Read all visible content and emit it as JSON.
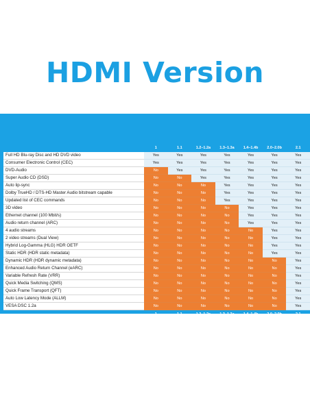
{
  "title": "HDMI Version",
  "colors": {
    "title": "#1ba0e2",
    "band": "#1ba2e4",
    "yes_cell": "#e3f0f8",
    "no_cell": "#ed7f32"
  },
  "versions": [
    "1",
    "1.1",
    "1.2–1.2a",
    "1.3–1.3a",
    "1.4–1.4b",
    "2.0–2.0b",
    "2.1"
  ],
  "rows": [
    {
      "feature": "Full HD Blu-ray Disc and HD DVD video",
      "values": [
        "Yes",
        "Yes",
        "Yes",
        "Yes",
        "Yes",
        "Yes",
        "Yes"
      ]
    },
    {
      "feature": "Consumer Electronic Control (CEC)",
      "values": [
        "Yes",
        "Yes",
        "Yes",
        "Yes",
        "Yes",
        "Yes",
        "Yes"
      ]
    },
    {
      "feature": "DVD-Audio",
      "values": [
        "No",
        "Yes",
        "Yes",
        "Yes",
        "Yes",
        "Yes",
        "Yes"
      ]
    },
    {
      "feature": "Super Audio CD (DSD)",
      "values": [
        "No",
        "No",
        "Yes",
        "Yes",
        "Yes",
        "Yes",
        "Yes"
      ]
    },
    {
      "feature": "Auto lip-sync",
      "values": [
        "No",
        "No",
        "No",
        "Yes",
        "Yes",
        "Yes",
        "Yes"
      ]
    },
    {
      "feature": "Dolby TrueHD / DTS-HD Master Audio bitstream capable",
      "values": [
        "No",
        "No",
        "No",
        "Yes",
        "Yes",
        "Yes",
        "Yes"
      ]
    },
    {
      "feature": "Updated list of CEC commands",
      "values": [
        "No",
        "No",
        "No",
        "Yes",
        "Yes",
        "Yes",
        "Yes"
      ]
    },
    {
      "feature": "3D video",
      "values": [
        "No",
        "No",
        "No",
        "No",
        "Yes",
        "Yes",
        "Yes"
      ]
    },
    {
      "feature": "Ethernet channel (100 Mbit/s)",
      "values": [
        "No",
        "No",
        "No",
        "No",
        "Yes",
        "Yes",
        "Yes"
      ]
    },
    {
      "feature": "Audio return channel (ARC)",
      "values": [
        "No",
        "No",
        "No",
        "No",
        "Yes",
        "Yes",
        "Yes"
      ]
    },
    {
      "feature": "4 audio streams",
      "values": [
        "No",
        "No",
        "No",
        "No",
        "No",
        "Yes",
        "Yes"
      ]
    },
    {
      "feature": "2 video streams (Dual View)",
      "values": [
        "No",
        "No",
        "No",
        "No",
        "No",
        "Yes",
        "Yes"
      ]
    },
    {
      "feature": "Hybrid Log-Gamma (HLG) HDR OETF",
      "values": [
        "No",
        "No",
        "No",
        "No",
        "No",
        "Yes",
        "Yes"
      ]
    },
    {
      "feature": "Static HDR (HDR static metadata)",
      "values": [
        "No",
        "No",
        "No",
        "No",
        "No",
        "Yes",
        "Yes"
      ]
    },
    {
      "feature": "Dynamic HDR (HDR dynamic metadata)",
      "values": [
        "No",
        "No",
        "No",
        "No",
        "No",
        "No",
        "Yes"
      ]
    },
    {
      "feature": "Enhanced Audio Return Channel (eARC)",
      "values": [
        "No",
        "No",
        "No",
        "No",
        "No",
        "No",
        "Yes"
      ]
    },
    {
      "feature": "Variable Refresh Rate (VRR)",
      "values": [
        "No",
        "No",
        "No",
        "No",
        "No",
        "No",
        "Yes"
      ]
    },
    {
      "feature": "Quick Media Switching (QMS)",
      "values": [
        "No",
        "No",
        "No",
        "No",
        "No",
        "No",
        "Yes"
      ]
    },
    {
      "feature": "Quick Frame Transport (QFT)",
      "values": [
        "No",
        "No",
        "No",
        "No",
        "No",
        "No",
        "Yes"
      ]
    },
    {
      "feature": "Auto Low Latency Mode (ALLM)",
      "values": [
        "No",
        "No",
        "No",
        "No",
        "No",
        "No",
        "Yes"
      ]
    },
    {
      "feature": "VESA DSC 1.2a",
      "values": [
        "No",
        "No",
        "No",
        "No",
        "No",
        "No",
        "Yes"
      ]
    }
  ]
}
